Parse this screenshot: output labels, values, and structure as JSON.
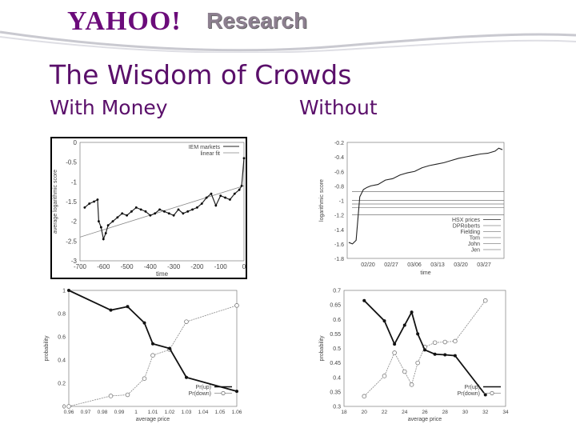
{
  "header": {
    "logo_text": "YAHOO!",
    "research_label": "Research"
  },
  "slide": {
    "title": "The Wisdom of Crowds",
    "left_label": "With Money",
    "right_label": "Without"
  },
  "chart_data": [
    {
      "type": "line",
      "xlabel": "time",
      "ylabel": "average logarithmic score",
      "xlim": [
        -700,
        0
      ],
      "ylim": [
        -3,
        0
      ],
      "xticks": [
        "-700",
        "-600",
        "-500",
        "-400",
        "-300",
        "-200",
        "-100",
        "0"
      ],
      "yticks": [
        "0",
        "-0.5",
        "-1",
        "-1.5",
        "-2",
        "-2.5",
        "-3"
      ],
      "legend": [
        "IEM markets",
        "linear fit"
      ],
      "legend_position": "top-right",
      "series": [
        {
          "name": "IEM markets",
          "x": [
            -680,
            -660,
            -640,
            -625,
            -620,
            -610,
            -600,
            -590,
            -580,
            -560,
            -540,
            -520,
            -500,
            -480,
            -460,
            -440,
            -420,
            -400,
            -380,
            -360,
            -340,
            -320,
            -300,
            -280,
            -260,
            -240,
            -220,
            -200,
            -180,
            -160,
            -140,
            -120,
            -100,
            -80,
            -60,
            -40,
            -20,
            -10,
            0
          ],
          "y": [
            -1.65,
            -1.55,
            -1.5,
            -1.45,
            -2.0,
            -2.15,
            -2.45,
            -2.3,
            -2.1,
            -2.0,
            -1.9,
            -1.8,
            -1.85,
            -1.75,
            -1.65,
            -1.7,
            -1.75,
            -1.85,
            -1.8,
            -1.7,
            -1.75,
            -1.8,
            -1.85,
            -1.7,
            -1.8,
            -1.75,
            -1.7,
            -1.65,
            -1.55,
            -1.4,
            -1.3,
            -1.6,
            -1.35,
            -1.4,
            -1.45,
            -1.3,
            -1.2,
            -1.1,
            -0.4
          ]
        },
        {
          "name": "linear fit",
          "x": [
            -700,
            0
          ],
          "y": [
            -2.4,
            -1.1
          ]
        }
      ]
    },
    {
      "type": "line",
      "xlabel": "time",
      "ylabel": "logarithmic score",
      "ylim": [
        -1.8,
        -0.2
      ],
      "xticks": [
        "02/20",
        "02/27",
        "03/06",
        "03/13",
        "03/20",
        "03/27"
      ],
      "yticks": [
        "-0.2",
        "-0.4",
        "-0.6",
        "-0.8",
        "-1",
        "-1.2",
        "-1.4",
        "-1.6",
        "-1.8"
      ],
      "legend": [
        "HSX prices",
        "DPRoberts",
        "Fielding",
        "Tom",
        "John",
        "Jen"
      ],
      "legend_position": "bottom-right",
      "series": [
        {
          "name": "HSX prices",
          "x": [
            0,
            1,
            2,
            3,
            4,
            5,
            6,
            8,
            10,
            12,
            14,
            16,
            18,
            20,
            22,
            24,
            26,
            28,
            30,
            32,
            34,
            36,
            38,
            40,
            41,
            42
          ],
          "y": [
            -1.58,
            -1.6,
            -1.55,
            -0.95,
            -0.85,
            -0.82,
            -0.8,
            -0.78,
            -0.72,
            -0.7,
            -0.65,
            -0.62,
            -0.6,
            -0.55,
            -0.52,
            -0.5,
            -0.48,
            -0.45,
            -0.42,
            -0.4,
            -0.38,
            -0.36,
            -0.35,
            -0.32,
            -0.28,
            -0.3
          ]
        },
        {
          "name": "DPRoberts",
          "y_const": -0.88
        },
        {
          "name": "Fielding",
          "y_const": -1.0
        },
        {
          "name": "Tom",
          "y_const": -1.05
        },
        {
          "name": "John",
          "y_const": -1.1
        },
        {
          "name": "Jen",
          "y_const": -1.2
        }
      ]
    },
    {
      "type": "line",
      "xlabel": "average price",
      "ylabel": "probability",
      "xlim": [
        0.96,
        1.06
      ],
      "ylim": [
        0,
        1
      ],
      "xticks": [
        "0.96",
        "0.97",
        "0.98",
        "0.99",
        "1",
        "1.01",
        "1.02",
        "1.03",
        "1.04",
        "1.05",
        "1.06"
      ],
      "yticks": [
        "0",
        "0.2",
        "0.4",
        "0.6",
        "0.8",
        "1"
      ],
      "legend": [
        "Pr(up)",
        "Pr(down)"
      ],
      "legend_position": "bottom-right",
      "series": [
        {
          "name": "Pr(up)",
          "x": [
            0.96,
            0.985,
            0.995,
            1.005,
            1.01,
            1.02,
            1.03,
            1.06
          ],
          "y": [
            1.0,
            0.83,
            0.86,
            0.72,
            0.54,
            0.5,
            0.25,
            0.13
          ]
        },
        {
          "name": "Pr(down)",
          "x": [
            0.96,
            0.985,
            0.995,
            1.005,
            1.01,
            1.02,
            1.03,
            1.06
          ],
          "y": [
            0.0,
            0.09,
            0.1,
            0.24,
            0.44,
            0.49,
            0.73,
            0.87
          ]
        }
      ]
    },
    {
      "type": "line",
      "xlabel": "average price",
      "ylabel": "probability",
      "xlim": [
        18,
        34
      ],
      "ylim": [
        0.3,
        0.7
      ],
      "xticks": [
        "18",
        "20",
        "22",
        "24",
        "26",
        "28",
        "30",
        "32",
        "34"
      ],
      "yticks": [
        "0.3",
        "0.35",
        "0.4",
        "0.45",
        "0.5",
        "0.55",
        "0.6",
        "0.65",
        "0.7"
      ],
      "legend": [
        "Pr(up)",
        "Pr(down)"
      ],
      "legend_position": "bottom-right",
      "series": [
        {
          "name": "Pr(up)",
          "x": [
            20,
            22,
            23,
            24,
            24.7,
            25.3,
            26,
            27,
            28,
            29,
            32
          ],
          "y": [
            0.665,
            0.595,
            0.515,
            0.58,
            0.625,
            0.55,
            0.495,
            0.48,
            0.478,
            0.475,
            0.34
          ]
        },
        {
          "name": "Pr(down)",
          "x": [
            20,
            22,
            23,
            24,
            24.7,
            25.3,
            26,
            27,
            28,
            29,
            32
          ],
          "y": [
            0.335,
            0.405,
            0.485,
            0.42,
            0.375,
            0.45,
            0.505,
            0.52,
            0.522,
            0.525,
            0.665
          ]
        }
      ]
    }
  ]
}
